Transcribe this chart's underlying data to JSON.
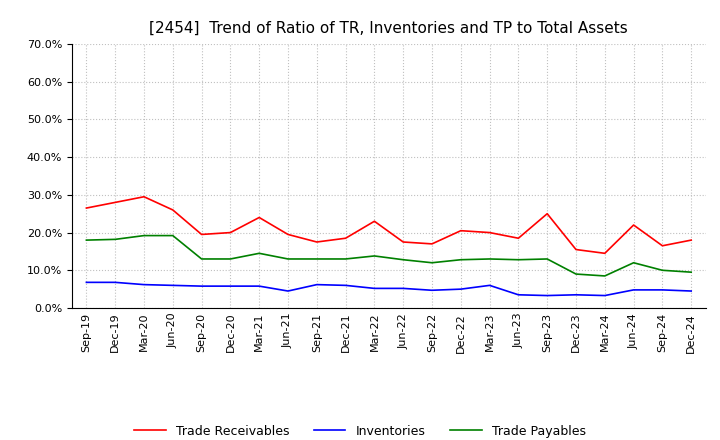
{
  "title": "[2454]  Trend of Ratio of TR, Inventories and TP to Total Assets",
  "x_labels": [
    "Sep-19",
    "Dec-19",
    "Mar-20",
    "Jun-20",
    "Sep-20",
    "Dec-20",
    "Mar-21",
    "Jun-21",
    "Sep-21",
    "Dec-21",
    "Mar-22",
    "Jun-22",
    "Sep-22",
    "Dec-22",
    "Mar-23",
    "Jun-23",
    "Sep-23",
    "Dec-23",
    "Mar-24",
    "Jun-24",
    "Sep-24",
    "Dec-24"
  ],
  "trade_receivables": [
    0.265,
    0.28,
    0.295,
    0.26,
    0.195,
    0.2,
    0.24,
    0.195,
    0.175,
    0.185,
    0.23,
    0.175,
    0.17,
    0.205,
    0.2,
    0.185,
    0.25,
    0.155,
    0.145,
    0.22,
    0.165,
    0.18
  ],
  "inventories": [
    0.068,
    0.068,
    0.062,
    0.06,
    0.058,
    0.058,
    0.058,
    0.045,
    0.062,
    0.06,
    0.052,
    0.052,
    0.047,
    0.05,
    0.06,
    0.035,
    0.033,
    0.035,
    0.033,
    0.048,
    0.048,
    0.045
  ],
  "trade_payables": [
    0.18,
    0.182,
    0.192,
    0.192,
    0.13,
    0.13,
    0.145,
    0.13,
    0.13,
    0.13,
    0.138,
    0.128,
    0.12,
    0.128,
    0.13,
    0.128,
    0.13,
    0.09,
    0.085,
    0.12,
    0.1,
    0.095
  ],
  "tr_color": "#FF0000",
  "inv_color": "#0000FF",
  "tp_color": "#008000",
  "ylim": [
    0.0,
    0.7
  ],
  "yticks": [
    0.0,
    0.1,
    0.2,
    0.3,
    0.4,
    0.5,
    0.6,
    0.7
  ],
  "bg_color": "#FFFFFF",
  "grid_color": "#C0C0C0",
  "title_fontsize": 11,
  "tick_fontsize": 8,
  "legend_fontsize": 9,
  "linewidth": 1.2
}
